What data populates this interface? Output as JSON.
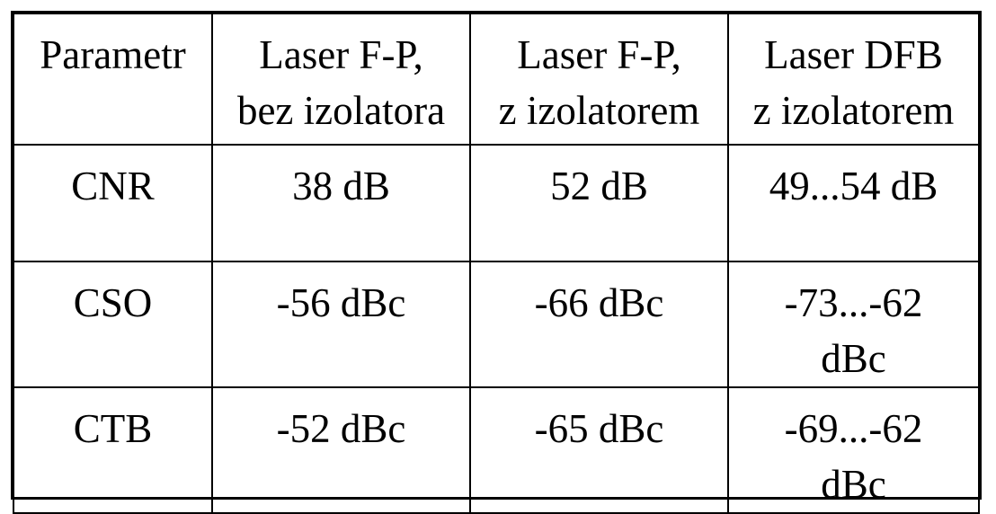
{
  "table": {
    "headers": [
      [
        "Parametr"
      ],
      [
        "Laser F-P,",
        "bez izolatora"
      ],
      [
        "Laser F-P,",
        "z izolatorem"
      ],
      [
        "Laser DFB",
        "z izolatorem"
      ]
    ],
    "rows": [
      {
        "parameter": "CNR",
        "fp_without_isolator": "38 dB",
        "fp_with_isolator": "52 dB",
        "dfb_with_isolator": [
          "49...54 dB"
        ]
      },
      {
        "parameter": "CSO",
        "fp_without_isolator": "-56 dBc",
        "fp_with_isolator": "-66 dBc",
        "dfb_with_isolator": [
          "-73...-62",
          "dBc"
        ]
      },
      {
        "parameter": "CTB",
        "fp_without_isolator": "-52 dBc",
        "fp_with_isolator": "-65 dBc",
        "dfb_with_isolator": [
          "-69...-62",
          "dBc"
        ]
      }
    ]
  }
}
